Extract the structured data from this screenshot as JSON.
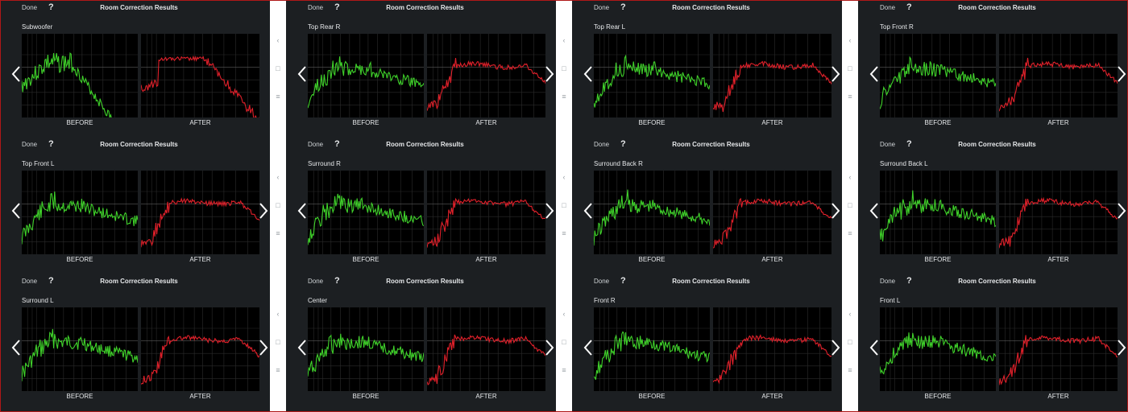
{
  "panels": [
    {
      "done": "Done",
      "help": "?",
      "title": "Room Correction Results",
      "speaker": "Subwoofer",
      "before": "BEFORE",
      "after": "AFTER",
      "kind": "sub",
      "seed": 3,
      "prev": true,
      "next": false
    },
    {
      "done": "Done",
      "help": "?",
      "title": "Room Correction Results",
      "speaker": "Top Front L",
      "before": "BEFORE",
      "after": "AFTER",
      "kind": "full",
      "seed": 11,
      "prev": true,
      "next": true
    },
    {
      "done": "Done",
      "help": "?",
      "title": "Room Correction Results",
      "speaker": "Surround L",
      "before": "BEFORE",
      "after": "AFTER",
      "kind": "full",
      "seed": 17,
      "prev": true,
      "next": true
    },
    {
      "done": "Done",
      "help": "?",
      "title": "Room Correction Results",
      "speaker": "Top Rear R",
      "before": "BEFORE",
      "after": "AFTER",
      "kind": "full",
      "seed": 23,
      "prev": true,
      "next": true
    },
    {
      "done": "Done",
      "help": "?",
      "title": "Room Correction Results",
      "speaker": "Surround R",
      "before": "BEFORE",
      "after": "AFTER",
      "kind": "full",
      "seed": 29,
      "prev": true,
      "next": true
    },
    {
      "done": "Done",
      "help": "?",
      "title": "Room Correction Results",
      "speaker": "Center",
      "before": "BEFORE",
      "after": "AFTER",
      "kind": "full",
      "seed": 31,
      "prev": true,
      "next": true
    },
    {
      "done": "Done",
      "help": "?",
      "title": "Room Correction Results",
      "speaker": "Top Rear L",
      "before": "BEFORE",
      "after": "AFTER",
      "kind": "full",
      "seed": 37,
      "prev": true,
      "next": true
    },
    {
      "done": "Done",
      "help": "?",
      "title": "Room Correction Results",
      "speaker": "Surround Back R",
      "before": "BEFORE",
      "after": "AFTER",
      "kind": "full",
      "seed": 41,
      "prev": true,
      "next": true
    },
    {
      "done": "Done",
      "help": "?",
      "title": "Room Correction Results",
      "speaker": "Front R",
      "before": "BEFORE",
      "after": "AFTER",
      "kind": "full",
      "seed": 43,
      "prev": true,
      "next": true
    },
    {
      "done": "Done",
      "help": "?",
      "title": "Room Correction Results",
      "speaker": "Top Front R",
      "before": "BEFORE",
      "after": "AFTER",
      "kind": "full",
      "seed": 47,
      "prev": true,
      "next": true
    },
    {
      "done": "Done",
      "help": "?",
      "title": "Room Correction Results",
      "speaker": "Surround Back L",
      "before": "BEFORE",
      "after": "AFTER",
      "kind": "full",
      "seed": 53,
      "prev": true,
      "next": true
    },
    {
      "done": "Done",
      "help": "?",
      "title": "Room Correction Results",
      "speaker": "Front L",
      "before": "BEFORE",
      "after": "AFTER",
      "kind": "full",
      "seed": 59,
      "prev": true,
      "next": true
    }
  ],
  "system_nav": {
    "back": "‹",
    "home": "□",
    "menu": "≡"
  },
  "colors": {
    "before_curve": "#3fd12a",
    "after_curve": "#e0202a",
    "graph_bg": "#000000",
    "grid": "#2b2b2b",
    "panel_bg": "#1c1f22"
  }
}
